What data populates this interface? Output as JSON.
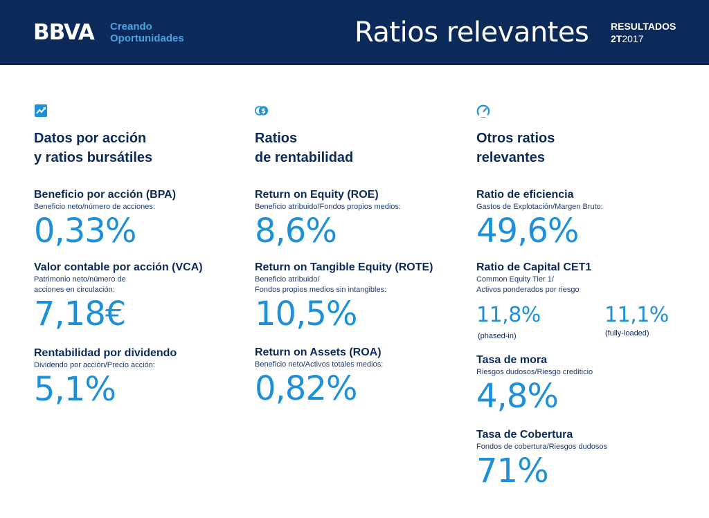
{
  "header": {
    "logo": "BBVA",
    "tagline_line1": "Creando",
    "tagline_line2": "Oportunidades",
    "title": "Ratios relevantes",
    "results_label": "RESULTADOS",
    "period_bold": "2T",
    "period_year": "2017"
  },
  "colors": {
    "navy": "#0b2a5a",
    "accent_blue": "#1e90d8",
    "tagline_blue": "#4aa3df"
  },
  "columns": [
    {
      "icon": "chart-trend-icon",
      "title_line1": "Datos por acción",
      "title_line2": "y ratios bursátiles",
      "items": [
        {
          "label": "Beneficio por acción (BPA)",
          "desc_line1": "Beneficio neto/número de acciones:",
          "value": "0,33%"
        },
        {
          "label": "Valor contable por acción (VCA)",
          "desc_line1": "Patrimonio neto/número de",
          "desc_line2": "acciones en circulación:",
          "value": "7,18€"
        },
        {
          "label": "Rentabilidad por dividendo",
          "desc_line1": "Dividendo por acción/Precio acción:",
          "value": "5,1%"
        }
      ]
    },
    {
      "icon": "coins-dollar-icon",
      "title_line1": "Ratios",
      "title_line2": "de rentabilidad",
      "items": [
        {
          "label": "Return on Equity (ROE)",
          "desc_line1": "Beneficio atribuido/Fondos propios medios:",
          "value": "8,6%"
        },
        {
          "label": "Return on Tangible Equity (ROTE)",
          "desc_line1": "Beneficio atribuido/",
          "desc_line2": "Fondos propios medios sin intangibles:",
          "value": "10,5%"
        },
        {
          "label": "Return on Assets (ROA)",
          "desc_line1": "Beneficio neto/Activos totales medios:",
          "value": "0,82%"
        }
      ]
    },
    {
      "icon": "gauge-icon",
      "title_line1": "Otros ratios",
      "title_line2": "relevantes",
      "items": [
        {
          "label": "Ratio de eficiencia",
          "desc_line1": "Gastos de Explotación/Margen Bruto:",
          "value": "49,6%"
        },
        {
          "label": "Ratio de Capital CET1",
          "desc_line1": "Common Equity Tier 1/",
          "desc_line2": "Activos ponderados por riesgo",
          "value_a": "11,8%",
          "note_a": "(phased-in)",
          "value_b": "11,1%",
          "note_b": "(fully-loaded)"
        },
        {
          "label": "Tasa de mora",
          "desc_line1": "Riesgos dudosos/Riesgo crediticio",
          "value": "4,8%"
        },
        {
          "label": "Tasa de  Cobertura",
          "desc_line1": "Fondos de cobertura/Riesgos dudosos",
          "value": "71%"
        }
      ]
    }
  ]
}
